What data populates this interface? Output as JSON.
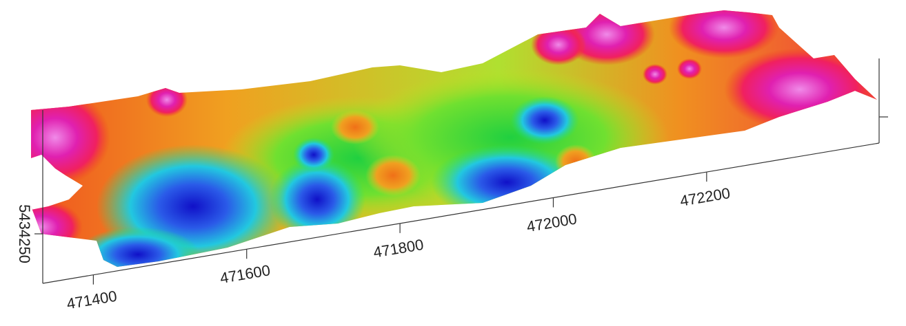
{
  "chart_data": {
    "type": "surface",
    "xlim": [
      471334,
      472425
    ],
    "xticks": [
      471400,
      471600,
      471800,
      472000,
      472200
    ],
    "ylim": [
      5434200,
      5434375
    ],
    "yticks": [
      5434250
    ]
  }
}
